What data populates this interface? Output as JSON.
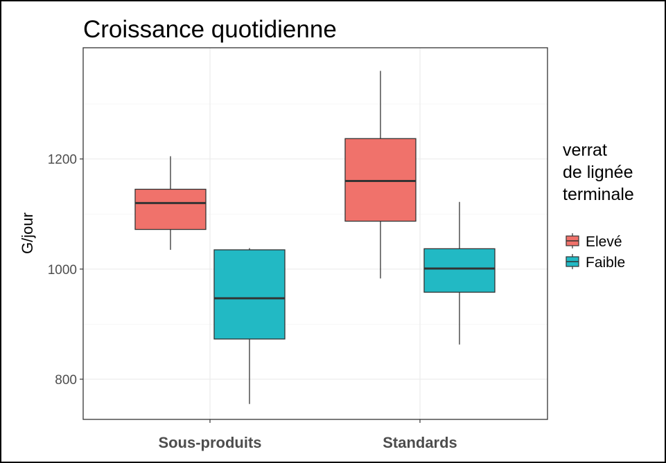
{
  "chart_data": {
    "type": "boxplot",
    "title": "Croissance quotidienne",
    "xlabel": "",
    "ylabel": "G/jour",
    "ylim": [
      727,
      1402
    ],
    "yticks": [
      800,
      1000,
      1200
    ],
    "categories": [
      "Sous-produits",
      "Standards"
    ],
    "legend": {
      "title_lines": [
        "verrat",
        "de lignée",
        "terminale"
      ],
      "position": "right"
    },
    "grid": true,
    "series": [
      {
        "name": "Elevé",
        "color": "#F0726B",
        "boxes": [
          {
            "category": "Sous-produits",
            "min": 1035,
            "q1": 1072,
            "median": 1120,
            "q3": 1145,
            "max": 1205
          },
          {
            "category": "Standards",
            "min": 983,
            "q1": 1087,
            "median": 1160,
            "q3": 1237,
            "max": 1360
          }
        ]
      },
      {
        "name": "Faible",
        "color": "#22B9C4",
        "boxes": [
          {
            "category": "Sous-produits",
            "min": 755,
            "q1": 873,
            "median": 947,
            "q3": 1035,
            "max": 1038
          },
          {
            "category": "Standards",
            "min": 863,
            "q1": 958,
            "median": 1001,
            "q3": 1037,
            "max": 1122
          }
        ]
      }
    ]
  }
}
